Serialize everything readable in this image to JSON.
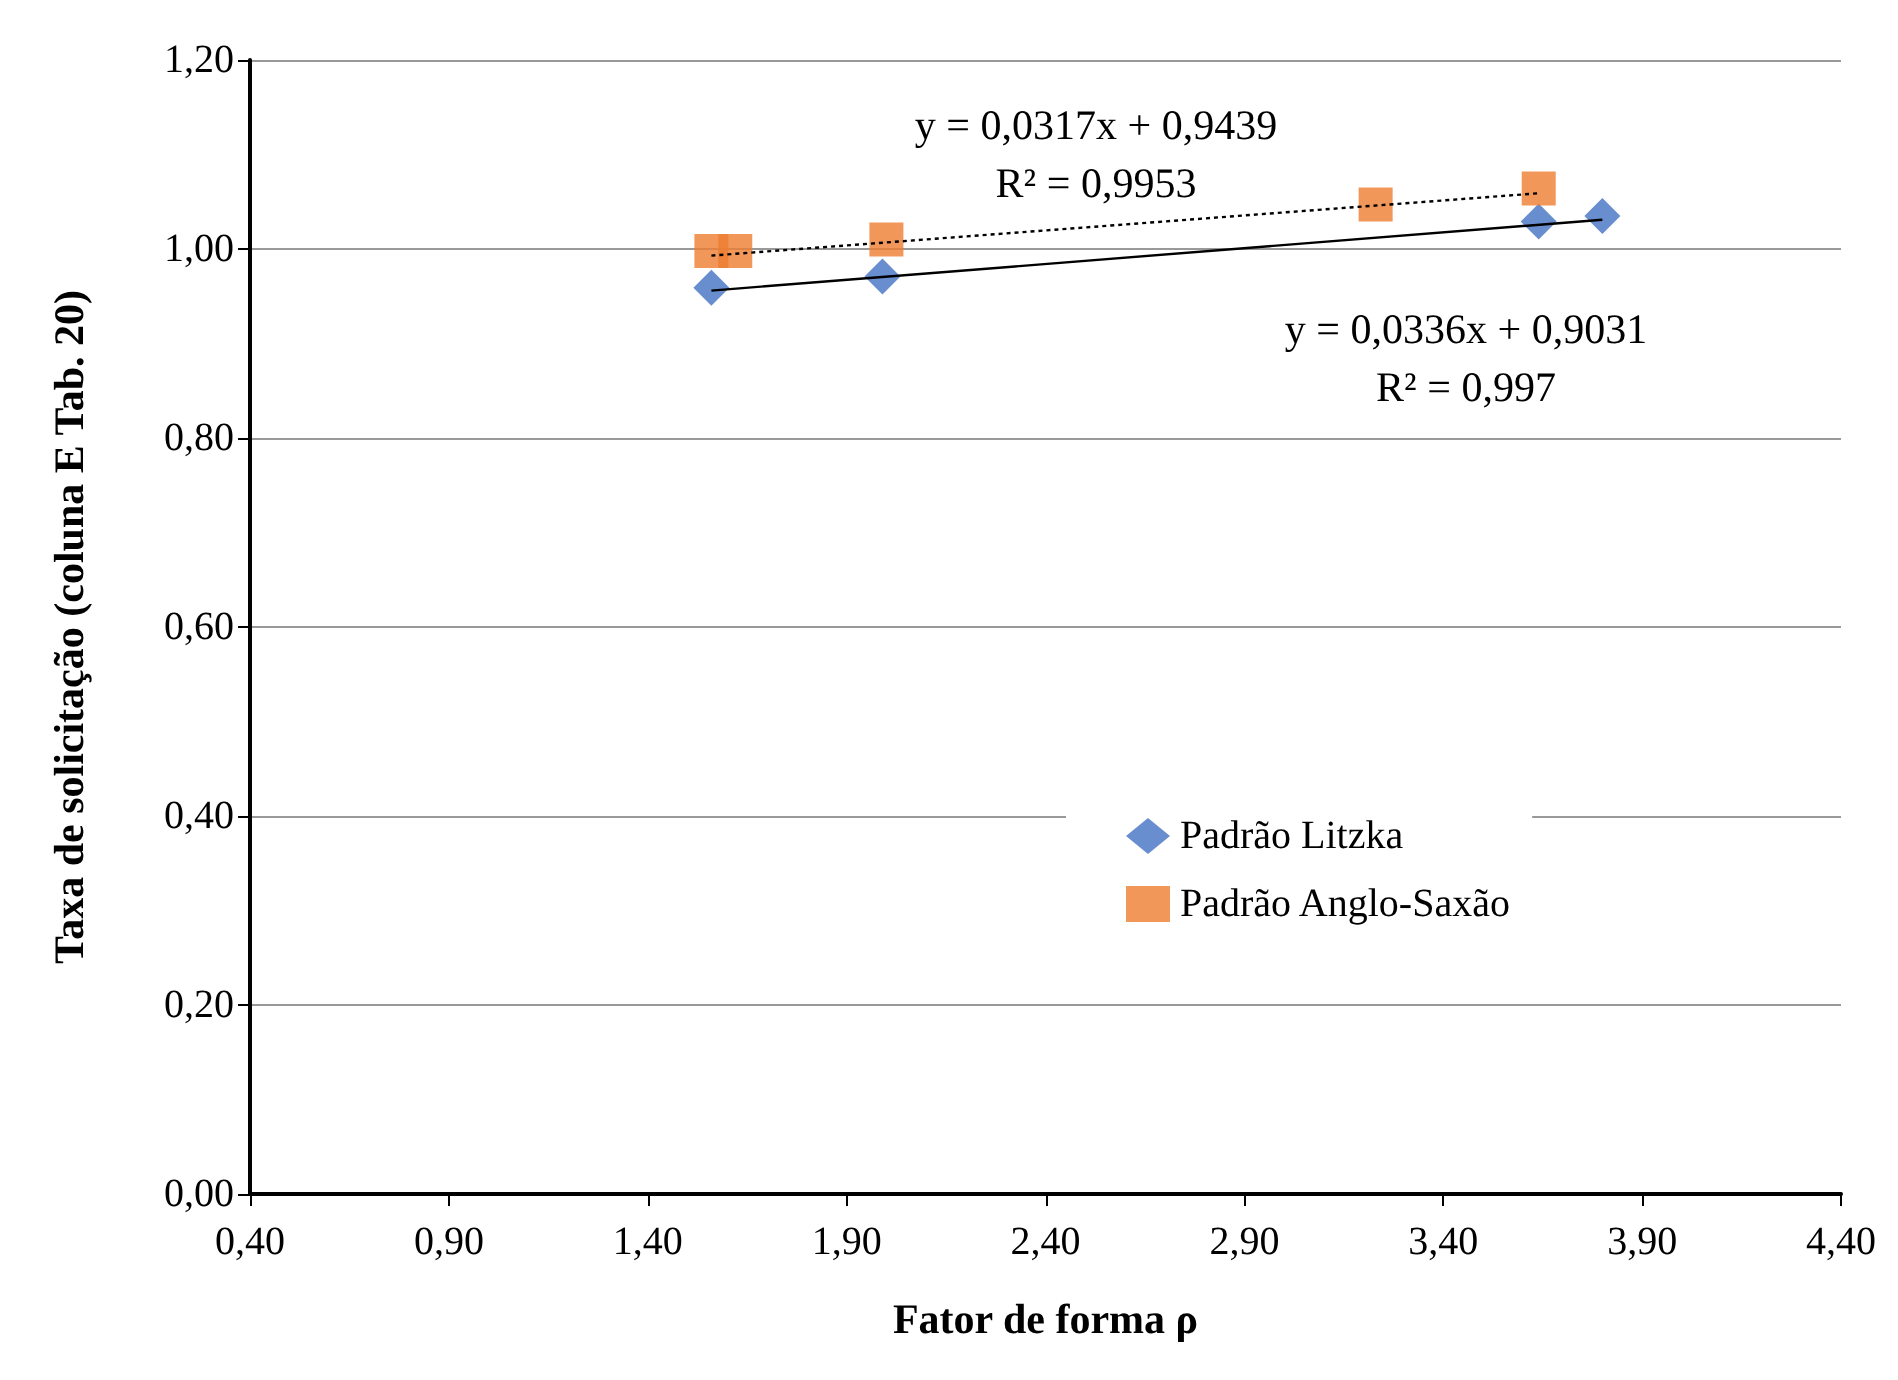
{
  "chart_data": {
    "type": "scatter",
    "xlabel": "Fator de forma ρ",
    "ylabel": "Taxa de solicitação (coluna E Tab. 20)",
    "xlim": [
      0.4,
      4.4
    ],
    "xticks": [
      {
        "value": 0.4,
        "label": "0,40"
      },
      {
        "value": 0.9,
        "label": "0,90"
      },
      {
        "value": 1.4,
        "label": "1,40"
      },
      {
        "value": 1.9,
        "label": "1,90"
      },
      {
        "value": 2.4,
        "label": "2,40"
      },
      {
        "value": 2.9,
        "label": "2,90"
      },
      {
        "value": 3.4,
        "label": "3,40"
      },
      {
        "value": 3.9,
        "label": "3,90"
      },
      {
        "value": 4.4,
        "label": "4,40"
      }
    ],
    "ylim": [
      0,
      1.2
    ],
    "yticks": [
      {
        "value": 0,
        "label": "0,00"
      },
      {
        "value": 0.2,
        "label": "0,20"
      },
      {
        "value": 0.4,
        "label": "0,40"
      },
      {
        "value": 0.6,
        "label": "0,60"
      },
      {
        "value": 0.8,
        "label": "0,80"
      },
      {
        "value": 1.0,
        "label": "1,00"
      },
      {
        "value": 1.2,
        "label": "1,20"
      }
    ],
    "grid": "y",
    "legend": "right",
    "series": [
      {
        "name": "Padrão Litzka",
        "color": "#4472c4",
        "marker": "diamond",
        "x": [
          1.56,
          1.99,
          3.64,
          3.8
        ],
        "values": [
          0.959,
          0.971,
          1.029,
          1.035
        ]
      },
      {
        "name": "Padrão Anglo-Saxão",
        "color": "#ed7d31",
        "marker": "square",
        "x": [
          1.56,
          1.62,
          2.0,
          3.23,
          3.64
        ],
        "values": [
          0.998,
          0.998,
          1.01,
          1.047,
          1.064
        ]
      },
      {
        "type": "line",
        "color": "#000000",
        "line_style": "dotted",
        "x": [
          1.56,
          3.64
        ],
        "values": [
          0.993,
          1.059
        ]
      },
      {
        "type": "line",
        "color": "#000000",
        "line_style": "solid",
        "x": [
          1.56,
          3.8
        ],
        "values": [
          0.956,
          1.031
        ]
      }
    ],
    "annotations": [
      "y = 0,0317x + 0,9439\nR² = 0,9953",
      "y = 0,0336x + 0,9031\nR² = 0,997"
    ]
  }
}
